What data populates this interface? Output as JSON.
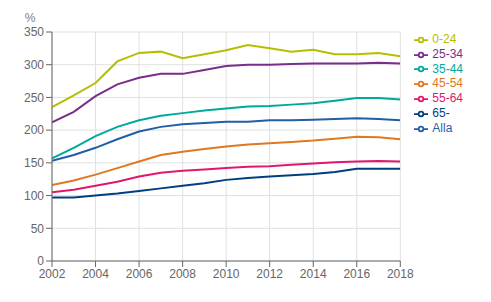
{
  "chart_data": {
    "type": "line",
    "ylabel": "%",
    "x": [
      2002,
      2003,
      2004,
      2005,
      2006,
      2007,
      2008,
      2009,
      2010,
      2011,
      2012,
      2013,
      2014,
      2015,
      2016,
      2017,
      2018
    ],
    "series": [
      {
        "name": "Alla",
        "color": "#1f5fa6",
        "values": [
          153,
          162,
          173,
          186,
          198,
          205,
          209,
          211,
          213,
          213,
          215,
          215,
          216,
          217,
          218,
          217,
          215
        ]
      },
      {
        "name": "0-24",
        "color": "#b5be00",
        "values": [
          235,
          253,
          272,
          305,
          318,
          320,
          310,
          316,
          322,
          330,
          325,
          320,
          323,
          316,
          316,
          318,
          313
        ]
      },
      {
        "name": "25-34",
        "color": "#7b2d8b",
        "values": [
          212,
          228,
          252,
          270,
          280,
          286,
          286,
          292,
          298,
          300,
          300,
          301,
          302,
          302,
          302,
          303,
          302
        ]
      },
      {
        "name": "35-44",
        "color": "#00a89d",
        "values": [
          157,
          173,
          191,
          205,
          215,
          222,
          226,
          230,
          233,
          236,
          237,
          239,
          241,
          245,
          249,
          249,
          247
        ]
      },
      {
        "name": "45-54",
        "color": "#e07820",
        "values": [
          116,
          123,
          132,
          142,
          152,
          162,
          167,
          171,
          175,
          178,
          180,
          182,
          184,
          187,
          190,
          189,
          186
        ]
      },
      {
        "name": "55-64",
        "color": "#e0186a",
        "values": [
          105,
          109,
          115,
          121,
          129,
          135,
          138,
          140,
          142,
          144,
          145,
          147,
          149,
          151,
          152,
          153,
          152
        ]
      },
      {
        "name": "65-",
        "color": "#003f7f",
        "values": [
          97,
          97,
          100,
          103,
          107,
          111,
          115,
          119,
          124,
          127,
          129,
          131,
          133,
          136,
          141,
          141,
          141
        ]
      }
    ],
    "xlim": [
      2002,
      2018
    ],
    "xticks": [
      2002,
      2004,
      2006,
      2008,
      2010,
      2012,
      2014,
      2016,
      2018
    ],
    "ylim": [
      0,
      350
    ],
    "yticks": [
      0,
      50,
      100,
      150,
      200,
      250,
      300,
      350
    ],
    "grid": true,
    "legend": "right"
  }
}
